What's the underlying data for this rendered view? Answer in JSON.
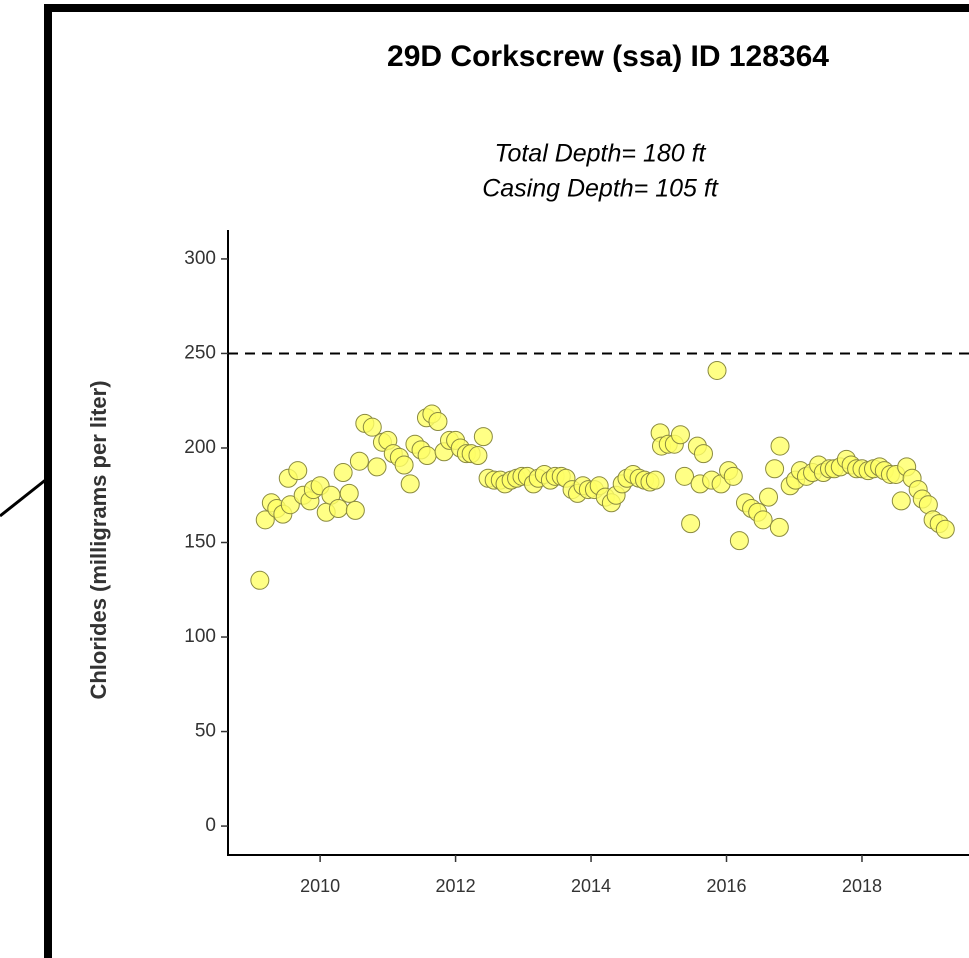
{
  "chart_data": {
    "type": "scatter",
    "title": "29D Corkscrew (ssa) ID 128364",
    "subtitle": [
      "Total Depth= 180 ft",
      "Casing Depth= 105 ft"
    ],
    "y_label": "Chlorides (milligrams per liter)",
    "color": "#ffff66",
    "edge_color": "#8a8a40",
    "reference_line": {
      "value": 250,
      "style": "dashed"
    },
    "x": [
      2009.11,
      2009.19,
      2009.28,
      2009.36,
      2009.45,
      2009.56,
      2009.53,
      2009.67,
      2009.75,
      2009.85,
      2009.9,
      2010.0,
      2010.09,
      2010.16,
      2010.27,
      2010.34,
      2010.43,
      2010.52,
      2010.58,
      2010.66,
      2010.77,
      2010.84,
      2010.92,
      2011.0,
      2011.08,
      2011.17,
      2011.24,
      2011.33,
      2011.4,
      2011.49,
      2011.58,
      2011.57,
      2011.65,
      2011.74,
      2011.83,
      2011.91,
      2012.0,
      2012.07,
      2012.16,
      2012.23,
      2012.33,
      2012.41,
      2012.48,
      2012.57,
      2012.66,
      2012.73,
      2012.82,
      2012.9,
      2012.98,
      2013.06,
      2013.15,
      2013.22,
      2013.31,
      2013.4,
      2013.47,
      2013.56,
      2013.63,
      2013.72,
      2013.8,
      2013.88,
      2013.96,
      2014.05,
      2014.12,
      2014.21,
      2014.3,
      2014.37,
      2014.46,
      2014.53,
      2014.62,
      2014.71,
      2014.79,
      2014.87,
      2014.95,
      2015.02,
      2015.04,
      2015.14,
      2015.23,
      2015.32,
      2015.38,
      2015.47,
      2015.57,
      2015.66,
      2015.61,
      2015.78,
      2015.86,
      2015.92,
      2016.03,
      2016.1,
      2016.19,
      2016.28,
      2016.37,
      2016.46,
      2016.54,
      2016.62,
      2016.71,
      2016.78,
      2016.79,
      2016.94,
      2017.02,
      2017.09,
      2017.18,
      2017.27,
      2017.36,
      2017.43,
      2017.52,
      2017.59,
      2017.68,
      2017.77,
      2017.84,
      2017.92,
      2018.0,
      2018.09,
      2018.17,
      2018.26,
      2018.33,
      2018.42,
      2018.5,
      2018.58,
      2018.66,
      2018.74,
      2018.83,
      2018.89,
      2018.98,
      2019.05,
      2019.14,
      2019.23
    ],
    "values": [
      130,
      162,
      171,
      168,
      165,
      170,
      184,
      188,
      175,
      172,
      178,
      180,
      166,
      175,
      168,
      187,
      176,
      167,
      193,
      213,
      211,
      190,
      203,
      204,
      197,
      195,
      191,
      181,
      202,
      199,
      196,
      216,
      218,
      214,
      198,
      204,
      204,
      200,
      197,
      197,
      196,
      206,
      184,
      183,
      183,
      181,
      183,
      184,
      185,
      185,
      181,
      184,
      186,
      183,
      185,
      185,
      184,
      178,
      176,
      180,
      178,
      178,
      180,
      174,
      171,
      175,
      181,
      184,
      186,
      184,
      183,
      182,
      183,
      208,
      201,
      202,
      202,
      207,
      185,
      160,
      201,
      197,
      181,
      183,
      241,
      181,
      188,
      185,
      151,
      171,
      168,
      166,
      162,
      174,
      189,
      158,
      201,
      180,
      183,
      188,
      185,
      187,
      191,
      187,
      189,
      189,
      190,
      194,
      191,
      189,
      189,
      188,
      189,
      190,
      188,
      186,
      186,
      172,
      190,
      184,
      178,
      173,
      170,
      162,
      160,
      157
    ],
    "xlim": [
      2008.64,
      2019.58
    ],
    "ylim": [
      -15.3,
      315.3
    ],
    "xticks": [
      2010,
      2012,
      2014,
      2016,
      2018
    ],
    "yticks": [
      0,
      50,
      100,
      150,
      200,
      250,
      300
    ],
    "grid": false
  }
}
